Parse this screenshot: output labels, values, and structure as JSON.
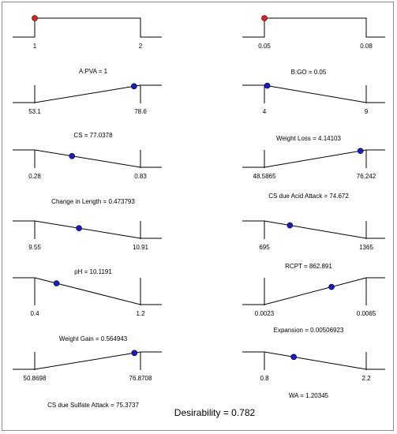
{
  "chart_data": {
    "type": "line",
    "title": "",
    "desirability_label": "Desirability = 0.782",
    "panels": [
      {
        "caption": "A:PVA = 1",
        "x_min_label": "1",
        "x_max_label": "2",
        "x_range": [
          1,
          2
        ],
        "shape": "factor",
        "value": 1,
        "dot_color": "#e02020"
      },
      {
        "caption": "B:GO = 0.05",
        "x_min_label": "0.05",
        "x_max_label": "0.08",
        "x_range": [
          0.05,
          0.08
        ],
        "shape": "factor",
        "value": 0.05,
        "dot_color": "#e02020"
      },
      {
        "caption": "CS = 77.0378",
        "x_min_label": "53.1",
        "x_max_label": "78.6",
        "x_range": [
          53.1,
          78.6
        ],
        "shape": "maximize",
        "value": 77.0378,
        "dot_color": "#1a1acc"
      },
      {
        "caption": "Weight Loss = 4.14103",
        "x_min_label": "4",
        "x_max_label": "9",
        "x_range": [
          4,
          9
        ],
        "shape": "minimize",
        "value": 4.14103,
        "dot_color": "#1a1acc"
      },
      {
        "caption": "Change in Length = 0.473793",
        "x_min_label": "0.28",
        "x_max_label": "0.83",
        "x_range": [
          0.28,
          0.83
        ],
        "shape": "minimize",
        "value": 0.473793,
        "dot_color": "#1a1acc"
      },
      {
        "caption": "CS due Acid Attack = 74.672",
        "x_min_label": "48.5865",
        "x_max_label": "76.242",
        "x_range": [
          48.5865,
          76.242
        ],
        "shape": "maximize",
        "value": 74.672,
        "dot_color": "#1a1acc"
      },
      {
        "caption": "pH = 10.1191",
        "x_min_label": "9.55",
        "x_max_label": "10.91",
        "x_range": [
          9.55,
          10.91
        ],
        "shape": "minimize",
        "value": 10.1191,
        "dot_color": "#1a1acc"
      },
      {
        "caption": "RCPT = 862.891",
        "x_min_label": "695",
        "x_max_label": "1365",
        "x_range": [
          695,
          1365
        ],
        "shape": "minimize",
        "value": 862.891,
        "dot_color": "#1a1acc"
      },
      {
        "caption": "Weight Gain = 0.564943",
        "x_min_label": "0.4",
        "x_max_label": "1.2",
        "x_range": [
          0.4,
          1.2
        ],
        "shape": "minimize",
        "value": 0.564943,
        "dot_color": "#1a1acc"
      },
      {
        "caption": "Expansion = 0.00506923",
        "x_min_label": "0.0023",
        "x_max_label": "0.0065",
        "x_range": [
          0.0023,
          0.0065
        ],
        "shape": "maximize",
        "value": 0.00506923,
        "dot_color": "#1a1acc"
      },
      {
        "caption": "CS due Sulfate Attack = 75.3737",
        "x_min_label": "50.8698",
        "x_max_label": "76.8708",
        "x_range": [
          50.8698,
          76.8708
        ],
        "shape": "maximize",
        "value": 75.3737,
        "dot_color": "#1a1acc"
      },
      {
        "caption": "WA = 1.20345",
        "x_min_label": "0.8",
        "x_max_label": "2.2",
        "x_range": [
          0.8,
          2.2
        ],
        "shape": "minimize",
        "value": 1.20345,
        "dot_color": "#1a1acc"
      }
    ]
  }
}
